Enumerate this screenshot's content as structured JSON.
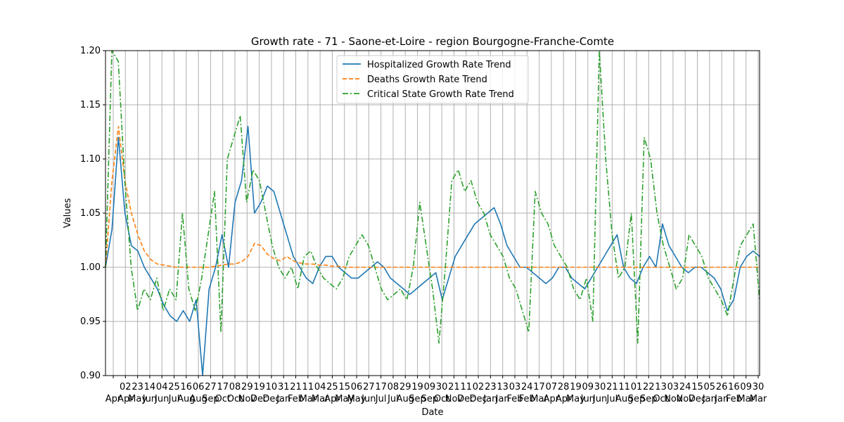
{
  "chart_data": {
    "type": "line",
    "title": "Growth rate - 71 - Saone-et-Loire - region Bourgogne-Franche-Comte",
    "xlabel": "Date",
    "ylabel": "Values",
    "ylim": [
      0.9,
      1.2
    ],
    "yticks": [
      "0.90",
      "0.95",
      "1.00",
      "1.05",
      "1.10",
      "1.15",
      "1.20"
    ],
    "grid": true,
    "legend_position": "top-center",
    "x_tick_labels": [
      {
        "day": "",
        "month": "Apr"
      },
      {
        "day": "02",
        "month": "Apr"
      },
      {
        "day": "23",
        "month": "May"
      },
      {
        "day": "14",
        "month": "Jun"
      },
      {
        "day": "04",
        "month": "Jun"
      },
      {
        "day": "25",
        "month": "Jul"
      },
      {
        "day": "16",
        "month": "Aug"
      },
      {
        "day": "06",
        "month": "Aug"
      },
      {
        "day": "27",
        "month": "Sep"
      },
      {
        "day": "17",
        "month": "Oct"
      },
      {
        "day": "08",
        "month": "Oct"
      },
      {
        "day": "29",
        "month": "Nov"
      },
      {
        "day": "19",
        "month": "Dec"
      },
      {
        "day": "10",
        "month": "Dec"
      },
      {
        "day": "31",
        "month": "Jan"
      },
      {
        "day": "21",
        "month": "Feb"
      },
      {
        "day": "11",
        "month": "Mar"
      },
      {
        "day": "04",
        "month": "Mar"
      },
      {
        "day": "25",
        "month": "Apr"
      },
      {
        "day": "15",
        "month": "May"
      },
      {
        "day": "06",
        "month": "May"
      },
      {
        "day": "27",
        "month": "Jun"
      },
      {
        "day": "17",
        "month": "Jul"
      },
      {
        "day": "08",
        "month": "Jul"
      },
      {
        "day": "29",
        "month": "Aug"
      },
      {
        "day": "19",
        "month": "Sep"
      },
      {
        "day": "09",
        "month": "Sep"
      },
      {
        "day": "30",
        "month": "Oct"
      },
      {
        "day": "21",
        "month": "Nov"
      },
      {
        "day": "11",
        "month": "Dec"
      },
      {
        "day": "02",
        "month": "Dec"
      },
      {
        "day": "23",
        "month": "Jan"
      },
      {
        "day": "13",
        "month": "Jan"
      },
      {
        "day": "03",
        "month": "Feb"
      },
      {
        "day": "24",
        "month": "Feb"
      },
      {
        "day": "17",
        "month": "Mar"
      },
      {
        "day": "07",
        "month": "Apr"
      },
      {
        "day": "28",
        "month": "Apr"
      },
      {
        "day": "19",
        "month": "May"
      },
      {
        "day": "09",
        "month": "Jun"
      },
      {
        "day": "30",
        "month": "Jun"
      },
      {
        "day": "21",
        "month": "Jul"
      },
      {
        "day": "11",
        "month": "Aug"
      },
      {
        "day": "01",
        "month": "Sep"
      },
      {
        "day": "22",
        "month": "Sep"
      },
      {
        "day": "13",
        "month": "Oct"
      },
      {
        "day": "03",
        "month": "Nov"
      },
      {
        "day": "24",
        "month": "Nov"
      },
      {
        "day": "15",
        "month": "Dec"
      },
      {
        "day": "05",
        "month": "Jan"
      },
      {
        "day": "26",
        "month": "Jan"
      },
      {
        "day": "16",
        "month": "Feb"
      },
      {
        "day": "09",
        "month": "Mar"
      },
      {
        "day": "30",
        "month": "Mar"
      }
    ],
    "series": [
      {
        "name": "Hospitalized Growth Rate Trend",
        "color": "#1f77b4",
        "style": "solid",
        "values": [
          1.0,
          1.035,
          1.12,
          1.05,
          1.02,
          1.015,
          1.0,
          0.99,
          0.98,
          0.965,
          0.955,
          0.95,
          0.96,
          0.95,
          0.97,
          0.9,
          0.98,
          1.0,
          1.03,
          1.0,
          1.06,
          1.08,
          1.13,
          1.05,
          1.06,
          1.075,
          1.07,
          1.05,
          1.03,
          1.01,
          1.0,
          0.99,
          0.985,
          1.0,
          1.01,
          1.01,
          1.0,
          0.995,
          0.99,
          0.99,
          0.995,
          1.0,
          1.005,
          1.0,
          0.99,
          0.985,
          0.98,
          0.975,
          0.98,
          0.985,
          0.99,
          0.995,
          0.97,
          0.99,
          1.01,
          1.02,
          1.03,
          1.04,
          1.045,
          1.05,
          1.055,
          1.04,
          1.02,
          1.01,
          1.0,
          1.0,
          0.995,
          0.99,
          0.985,
          0.99,
          1.0,
          1.0,
          0.99,
          0.985,
          0.98,
          0.99,
          1.0,
          1.01,
          1.02,
          1.03,
          1.0,
          0.99,
          0.985,
          1.0,
          1.01,
          1.0,
          1.04,
          1.02,
          1.01,
          1.0,
          0.995,
          1.0,
          1.0,
          0.995,
          0.99,
          0.98,
          0.96,
          0.97,
          1.0,
          1.01,
          1.015,
          1.01
        ]
      },
      {
        "name": "Deaths Growth Rate Trend",
        "color": "#ff7f0e",
        "style": "dashed",
        "values": [
          1.0,
          1.08,
          1.13,
          1.08,
          1.05,
          1.03,
          1.015,
          1.007,
          1.003,
          1.002,
          1.001,
          1.0,
          1.0,
          1.0,
          1.0,
          1.0,
          1.0,
          1.001,
          1.002,
          1.003,
          1.003,
          1.005,
          1.01,
          1.022,
          1.02,
          1.012,
          1.008,
          1.006,
          1.01,
          1.006,
          1.004,
          1.003,
          1.003,
          1.002,
          1.002,
          1.001,
          1.001,
          1.0,
          1.0,
          1.0,
          1.0,
          1.0,
          1.0,
          1.0,
          1.0,
          1.0,
          1.0,
          1.0,
          1.0,
          1.0,
          1.0,
          1.0,
          1.0,
          1.0,
          1.0,
          1.0,
          1.0,
          1.0,
          1.0,
          1.0,
          1.0,
          1.0,
          1.0,
          1.0,
          1.0,
          1.0,
          1.0,
          1.0,
          1.0,
          1.0,
          1.0,
          1.0,
          1.0,
          1.0,
          1.0,
          1.0,
          1.0,
          1.0,
          1.0,
          1.0,
          1.0,
          1.0,
          1.0,
          1.0,
          1.0,
          1.0,
          1.0,
          1.0,
          1.0,
          1.0,
          1.0,
          1.0,
          1.0,
          1.0,
          1.0,
          1.0,
          1.0,
          1.0,
          1.0,
          1.0,
          1.0,
          1.0
        ]
      },
      {
        "name": "Critical State Growth Rate Trend",
        "color": "#2ca02c",
        "style": "dashdot",
        "values": [
          1.0,
          1.2,
          1.19,
          1.08,
          1.0,
          0.96,
          0.98,
          0.97,
          0.99,
          0.96,
          0.98,
          0.97,
          1.05,
          0.98,
          0.96,
          0.99,
          1.03,
          1.07,
          0.94,
          1.1,
          1.12,
          1.14,
          1.06,
          1.09,
          1.08,
          1.05,
          1.02,
          1.0,
          0.99,
          1.0,
          0.98,
          1.01,
          1.015,
          1.0,
          0.99,
          0.985,
          0.98,
          0.99,
          1.01,
          1.02,
          1.03,
          1.02,
          1.0,
          0.98,
          0.97,
          0.975,
          0.98,
          0.97,
          1.0,
          1.06,
          1.02,
          0.98,
          0.93,
          1.0,
          1.08,
          1.09,
          1.07,
          1.08,
          1.06,
          1.05,
          1.03,
          1.02,
          1.01,
          0.99,
          0.98,
          0.96,
          0.94,
          1.07,
          1.05,
          1.04,
          1.02,
          1.01,
          1.0,
          0.98,
          0.97,
          0.99,
          0.95,
          1.2,
          1.1,
          1.03,
          0.99,
          1.0,
          1.05,
          0.93,
          1.12,
          1.1,
          1.05,
          1.02,
          1.0,
          0.98,
          0.99,
          1.03,
          1.02,
          1.01,
          0.99,
          0.98,
          0.97,
          0.955,
          0.99,
          1.02,
          1.03,
          1.04,
          0.97
        ]
      }
    ]
  }
}
